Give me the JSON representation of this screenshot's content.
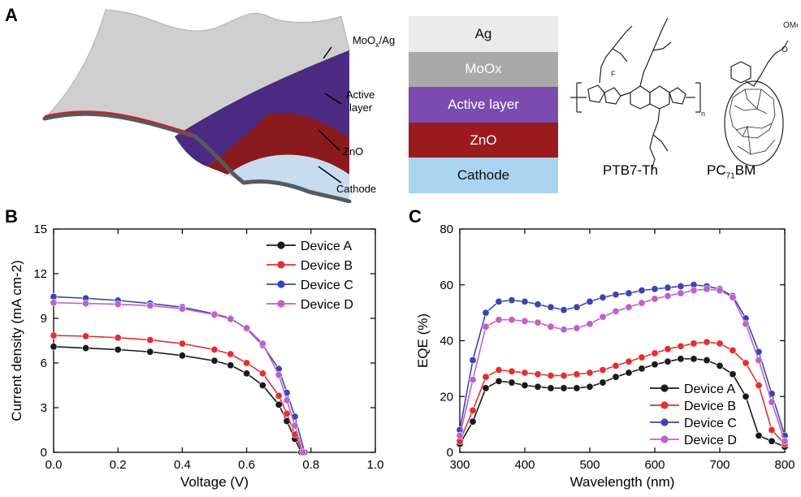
{
  "panel_labels": {
    "a": "A",
    "b": "B",
    "c": "C"
  },
  "schematic": {
    "labels": {
      "top": "MoOx/Ag",
      "active": "Active\nlayer",
      "zno": "ZnO",
      "cathode": "Cathode"
    }
  },
  "layer_stack": {
    "layers": [
      {
        "label": "Ag",
        "color": "#ebebeb",
        "text_color": "#111111"
      },
      {
        "label": "MoOx",
        "color": "#a9a9a9",
        "text_color": "#ffffff"
      },
      {
        "label": "Active layer",
        "color": "#7b4bb0",
        "text_color": "#ffffff"
      },
      {
        "label": "ZnO",
        "color": "#9b1a1e",
        "text_color": "#ffffff"
      },
      {
        "label": "Cathode",
        "color": "#a9d3ef",
        "text_color": "#111111"
      }
    ]
  },
  "molecules": {
    "polymer": "PTB7-Th",
    "acceptor": "PC71BM",
    "ome_label": "OMe",
    "n_label": "n",
    "o_label": "O",
    "f_label": "F"
  },
  "colors": {
    "A": "#1a1a1a",
    "B": "#e03030",
    "C": "#3a45b5",
    "D": "#c060c8"
  },
  "chart_data": [
    {
      "type": "line",
      "panel": "B",
      "xlabel": "Voltage (V)",
      "ylabel": "Current density (mA cm-2)",
      "xlim": [
        0.0,
        1.0
      ],
      "ylim": [
        0,
        15
      ],
      "xticks": [
        "0.0",
        "0.2",
        "0.4",
        "0.6",
        "0.8",
        "1.0"
      ],
      "yticks": [
        "0",
        "3",
        "6",
        "9",
        "12",
        "15"
      ],
      "legend_position": "top-right",
      "series": [
        {
          "name": "Device A",
          "x": [
            0,
            0.1,
            0.2,
            0.3,
            0.4,
            0.5,
            0.55,
            0.6,
            0.65,
            0.7,
            0.725,
            0.75,
            0.77
          ],
          "y": [
            7.1,
            7.0,
            6.9,
            6.75,
            6.5,
            6.15,
            5.85,
            5.3,
            4.5,
            3.2,
            2.1,
            0.9,
            0
          ]
        },
        {
          "name": "Device B",
          "x": [
            0,
            0.1,
            0.2,
            0.3,
            0.4,
            0.5,
            0.55,
            0.6,
            0.65,
            0.7,
            0.725,
            0.75,
            0.775
          ],
          "y": [
            7.85,
            7.8,
            7.7,
            7.55,
            7.3,
            6.9,
            6.6,
            6.0,
            5.3,
            3.8,
            2.6,
            1.2,
            0
          ]
        },
        {
          "name": "Device C",
          "x": [
            0,
            0.1,
            0.2,
            0.3,
            0.4,
            0.5,
            0.55,
            0.6,
            0.65,
            0.7,
            0.725,
            0.75,
            0.78
          ],
          "y": [
            10.45,
            10.35,
            10.2,
            10.0,
            9.75,
            9.3,
            9.0,
            8.3,
            7.2,
            5.6,
            4.0,
            2.4,
            0
          ]
        },
        {
          "name": "Device D",
          "x": [
            0,
            0.1,
            0.2,
            0.3,
            0.4,
            0.5,
            0.55,
            0.6,
            0.65,
            0.7,
            0.725,
            0.75,
            0.775
          ],
          "y": [
            10.05,
            10.0,
            9.95,
            9.85,
            9.65,
            9.25,
            8.95,
            8.35,
            7.3,
            5.2,
            3.5,
            1.8,
            0
          ]
        }
      ]
    },
    {
      "type": "line",
      "panel": "C",
      "xlabel": "Wavelength (nm)",
      "ylabel": "EQE (%)",
      "xlim": [
        300,
        800
      ],
      "ylim": [
        0,
        80
      ],
      "xticks": [
        "300",
        "400",
        "500",
        "600",
        "700",
        "800"
      ],
      "yticks": [
        "0",
        "20",
        "40",
        "60",
        "80"
      ],
      "legend_position": "bottom-right",
      "series": [
        {
          "name": "Device A",
          "x": [
            300,
            320,
            340,
            360,
            380,
            400,
            420,
            440,
            460,
            480,
            500,
            520,
            540,
            560,
            580,
            600,
            620,
            640,
            660,
            680,
            700,
            720,
            740,
            760,
            780,
            800
          ],
          "y": [
            3,
            11,
            23,
            25.5,
            25,
            24,
            23.5,
            23,
            23,
            23,
            23.5,
            25,
            27,
            28.5,
            30,
            31.5,
            32.5,
            33.5,
            33.5,
            33,
            31,
            28,
            20,
            6,
            4,
            2
          ]
        },
        {
          "name": "Device B",
          "x": [
            300,
            320,
            340,
            360,
            380,
            400,
            420,
            440,
            460,
            480,
            500,
            520,
            540,
            560,
            580,
            600,
            620,
            640,
            660,
            680,
            700,
            720,
            740,
            760,
            780,
            800
          ],
          "y": [
            4,
            15,
            27,
            29.5,
            29,
            28.5,
            28,
            27.5,
            27.5,
            28,
            28.5,
            29.5,
            31,
            32.5,
            34,
            35.5,
            37,
            38,
            39,
            39.5,
            39,
            36.5,
            32,
            24,
            8,
            3
          ]
        },
        {
          "name": "Device C",
          "x": [
            300,
            320,
            340,
            360,
            380,
            400,
            420,
            440,
            460,
            480,
            500,
            520,
            540,
            560,
            580,
            600,
            620,
            640,
            660,
            680,
            700,
            720,
            740,
            760,
            780,
            800
          ],
          "y": [
            8,
            33,
            50,
            54,
            54.5,
            54,
            53,
            52,
            51,
            52,
            54,
            55.5,
            56.5,
            57,
            58,
            58.5,
            59,
            59.5,
            60,
            59.5,
            58.5,
            56,
            48,
            36,
            21,
            6
          ]
        },
        {
          "name": "Device D",
          "x": [
            300,
            320,
            340,
            360,
            380,
            400,
            420,
            440,
            460,
            480,
            500,
            520,
            540,
            560,
            580,
            600,
            620,
            640,
            660,
            680,
            700,
            720,
            740,
            760,
            780,
            800
          ],
          "y": [
            6,
            26,
            45,
            47.5,
            47.5,
            47,
            46.5,
            45,
            44,
            44.5,
            46,
            48.5,
            50.5,
            52,
            53.5,
            55,
            56,
            57,
            58,
            58.5,
            58,
            55.5,
            46,
            33,
            18,
            4
          ]
        }
      ]
    }
  ]
}
